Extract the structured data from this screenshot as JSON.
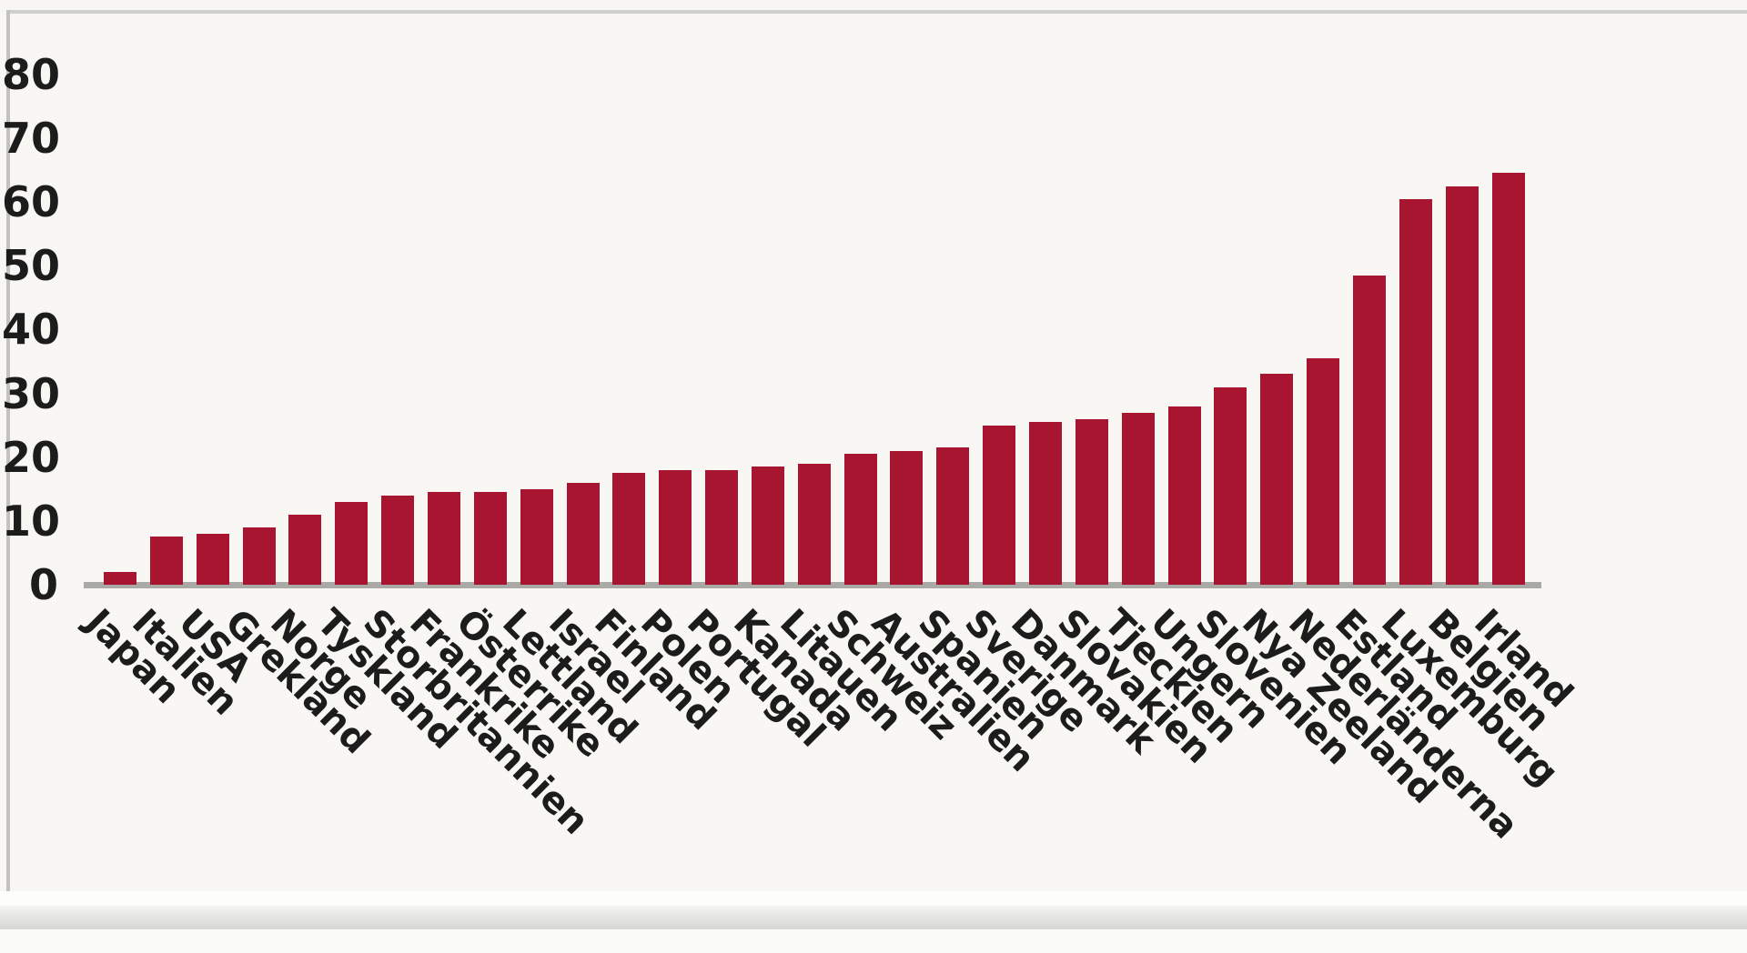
{
  "chart_data": {
    "type": "bar",
    "categories": [
      "Japan",
      "Italien",
      "USA",
      "Grekland",
      "Norge",
      "Tyskland",
      "Storbritannien",
      "Frankrike",
      "Österrike",
      "Lettland",
      "Israel",
      "Finland",
      "Polen",
      "Portugal",
      "Kanada",
      "Litauen",
      "Schweiz",
      "Australien",
      "Spanien",
      "Sverige",
      "Danmark",
      "Slovakien",
      "Tjeckien",
      "Ungern",
      "Slovenien",
      "Nya Zeeland",
      "Nederländerna",
      "Estland",
      "Luxemburg",
      "Belgien",
      "Irland"
    ],
    "values": [
      2,
      7.5,
      8,
      9,
      11,
      13,
      14,
      14.5,
      14.5,
      15,
      16,
      17.5,
      18,
      18,
      18.5,
      19,
      20.5,
      21,
      21.5,
      25,
      25.5,
      26,
      27,
      28,
      31,
      33,
      35.5,
      48.5,
      60.5,
      62.5,
      64.5
    ],
    "title": "",
    "xlabel": "",
    "ylabel": "",
    "ylim": [
      0,
      80
    ],
    "yticks": [
      0,
      10,
      20,
      30,
      40,
      50,
      60,
      70,
      80
    ],
    "grid": false,
    "legend": "none",
    "bar_color": "#a81531",
    "axis_color": "#a9a9a5",
    "text_color": "#1c1c1c",
    "background_color": "#f8f7f4"
  }
}
